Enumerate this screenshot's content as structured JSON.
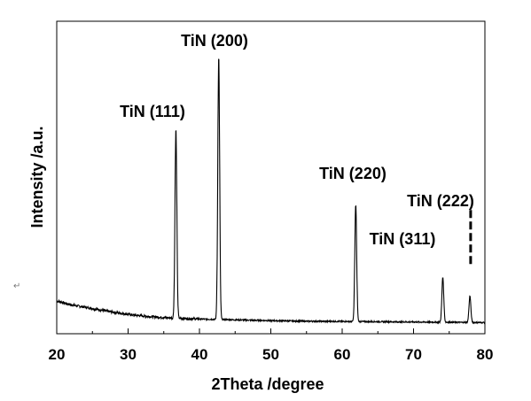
{
  "chart_data": {
    "type": "line",
    "title": "",
    "xlabel": "2Theta /degree",
    "ylabel": "Intensity /a.u.",
    "xlim": [
      20,
      80
    ],
    "ylim": [
      0,
      100
    ],
    "x_ticks": [
      20,
      30,
      40,
      50,
      60,
      70,
      80
    ],
    "y_ticks": [],
    "grid": false,
    "legend": "none",
    "series_color": "#000000",
    "background_points": [
      [
        20,
        9.2
      ],
      [
        22,
        7.8
      ],
      [
        25,
        6.4
      ],
      [
        28,
        5.0
      ],
      [
        31,
        3.9
      ],
      [
        34,
        3.2
      ],
      [
        37,
        2.8
      ],
      [
        40,
        2.5
      ],
      [
        45,
        2.2
      ],
      [
        50,
        1.9
      ],
      [
        55,
        1.7
      ],
      [
        60,
        1.6
      ],
      [
        65,
        1.5
      ],
      [
        70,
        1.4
      ],
      [
        75,
        1.3
      ],
      [
        80,
        1.2
      ]
    ],
    "peaks": [
      {
        "x": 36.7,
        "y": 73,
        "label": "TiN (111)"
      },
      {
        "x": 42.7,
        "y": 100,
        "label": "TiN (200)"
      },
      {
        "x": 61.9,
        "y": 45,
        "label": "TiN (220)"
      },
      {
        "x": 74.1,
        "y": 18,
        "label": "TiN (311)"
      },
      {
        "x": 77.9,
        "y": 11,
        "label": "TiN (222)"
      }
    ],
    "annotations": [
      {
        "type": "dashed-line",
        "x": 78.0,
        "y_from": 22,
        "y_to": 43
      }
    ]
  },
  "stray_mark": "↵"
}
